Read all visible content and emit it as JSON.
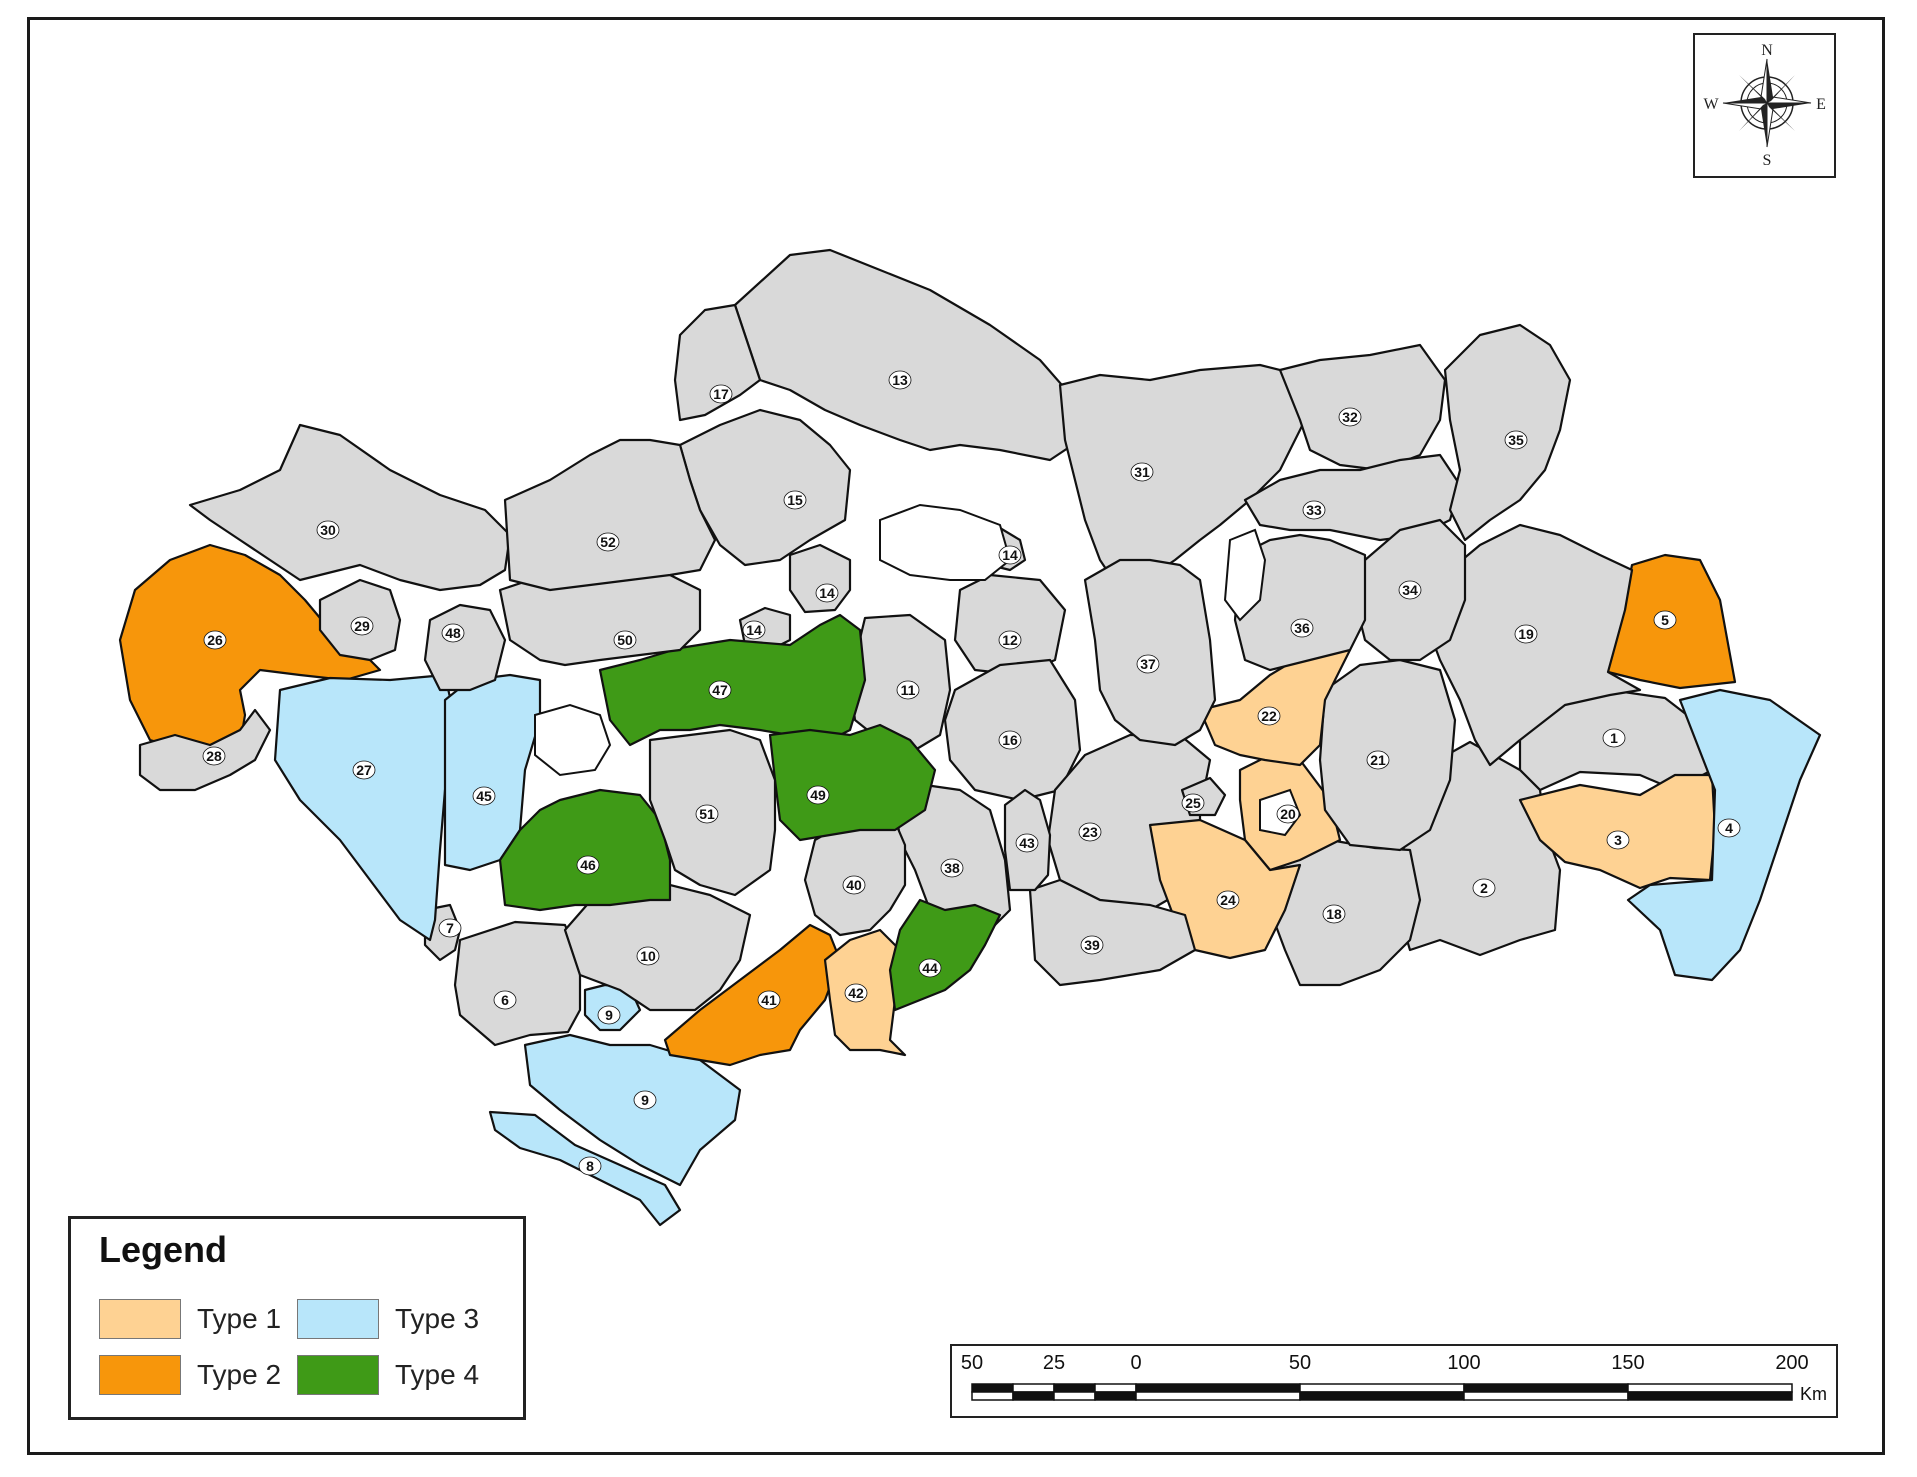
{
  "legend": {
    "title": "Legend",
    "items": [
      {
        "label": "Type 1",
        "color": "#fed293"
      },
      {
        "label": "Type 2",
        "color": "#f7960b"
      },
      {
        "label": "Type 3",
        "color": "#b8e6fa"
      },
      {
        "label": "Type 4",
        "color": "#3f9a17"
      }
    ]
  },
  "compass": {
    "n": "N",
    "s": "S",
    "e": "E",
    "w": "W"
  },
  "scale_bar": {
    "ticks": [
      "50",
      "25",
      "0",
      "50",
      "100",
      "150",
      "200"
    ],
    "unit": "Km"
  },
  "colors": {
    "unclassified": "#d9d9d9",
    "outside": "#ffffff"
  },
  "regions": [
    {
      "id": "1",
      "type": "none"
    },
    {
      "id": "2",
      "type": "none"
    },
    {
      "id": "3",
      "type": "Type 1"
    },
    {
      "id": "4",
      "type": "Type 3"
    },
    {
      "id": "5",
      "type": "Type 2"
    },
    {
      "id": "6",
      "type": "none"
    },
    {
      "id": "7",
      "type": "none"
    },
    {
      "id": "8",
      "type": "Type 3"
    },
    {
      "id": "9",
      "type": "Type 3"
    },
    {
      "id": "9",
      "type": "Type 3"
    },
    {
      "id": "10",
      "type": "none"
    },
    {
      "id": "11",
      "type": "none"
    },
    {
      "id": "12",
      "type": "none"
    },
    {
      "id": "13",
      "type": "none"
    },
    {
      "id": "14",
      "type": "none"
    },
    {
      "id": "14",
      "type": "none"
    },
    {
      "id": "14",
      "type": "none"
    },
    {
      "id": "15",
      "type": "none"
    },
    {
      "id": "16",
      "type": "none"
    },
    {
      "id": "17",
      "type": "none"
    },
    {
      "id": "18",
      "type": "none"
    },
    {
      "id": "19",
      "type": "none"
    },
    {
      "id": "20",
      "type": "Type 1"
    },
    {
      "id": "21",
      "type": "none"
    },
    {
      "id": "22",
      "type": "Type 1"
    },
    {
      "id": "23",
      "type": "none"
    },
    {
      "id": "24",
      "type": "Type 1"
    },
    {
      "id": "25",
      "type": "none"
    },
    {
      "id": "26",
      "type": "Type 2"
    },
    {
      "id": "27",
      "type": "Type 3"
    },
    {
      "id": "28",
      "type": "none"
    },
    {
      "id": "29",
      "type": "none"
    },
    {
      "id": "30",
      "type": "none"
    },
    {
      "id": "31",
      "type": "none"
    },
    {
      "id": "32",
      "type": "none"
    },
    {
      "id": "33",
      "type": "none"
    },
    {
      "id": "34",
      "type": "none"
    },
    {
      "id": "35",
      "type": "none"
    },
    {
      "id": "36",
      "type": "none"
    },
    {
      "id": "37",
      "type": "none"
    },
    {
      "id": "38",
      "type": "none"
    },
    {
      "id": "39",
      "type": "none"
    },
    {
      "id": "40",
      "type": "none"
    },
    {
      "id": "41",
      "type": "Type 2"
    },
    {
      "id": "42",
      "type": "Type 1"
    },
    {
      "id": "43",
      "type": "none"
    },
    {
      "id": "44",
      "type": "Type 4"
    },
    {
      "id": "45",
      "type": "Type 3"
    },
    {
      "id": "46",
      "type": "Type 4"
    },
    {
      "id": "47",
      "type": "Type 4"
    },
    {
      "id": "48",
      "type": "none"
    },
    {
      "id": "49",
      "type": "Type 4"
    },
    {
      "id": "50",
      "type": "none"
    },
    {
      "id": "51",
      "type": "none"
    },
    {
      "id": "52",
      "type": "none"
    }
  ]
}
